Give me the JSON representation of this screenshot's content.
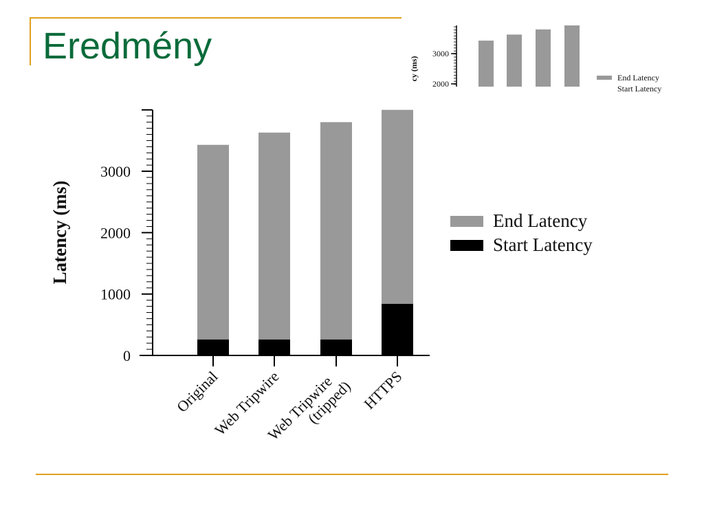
{
  "slide": {
    "title": "Eredmény",
    "accent_color": "#e0a020",
    "title_color": "#0a6b3a"
  },
  "chart_data": {
    "type": "bar",
    "stacked": true,
    "title": "",
    "ylabel": "Latency (ms)",
    "xlabel": "",
    "categories": [
      "Original",
      "Web Tripwire",
      "Web Tripwire (tripped)",
      "HTTPS"
    ],
    "category_lines": [
      [
        "Original"
      ],
      [
        "Web Tripwire"
      ],
      [
        "Web Tripwire",
        "(tripped)"
      ],
      [
        "HTTPS"
      ]
    ],
    "yticks": [
      0,
      1000,
      2000,
      3000
    ],
    "ylim": [
      0,
      4000
    ],
    "series": [
      {
        "name": "Start Latency",
        "color": "#000000",
        "values": [
          260,
          260,
          260,
          840
        ]
      },
      {
        "name": "End Latency",
        "color": "#999999",
        "values": [
          3170,
          3370,
          3540,
          3160
        ]
      }
    ],
    "legend_position": "right",
    "legend_order": [
      "End Latency",
      "Start Latency"
    ],
    "grid": false
  },
  "thumbnail": {
    "ylabel_fragment": "cy (ms)",
    "yticks": [
      "3000",
      "2000"
    ],
    "legend": [
      "End Latency",
      "Start Latency"
    ]
  }
}
